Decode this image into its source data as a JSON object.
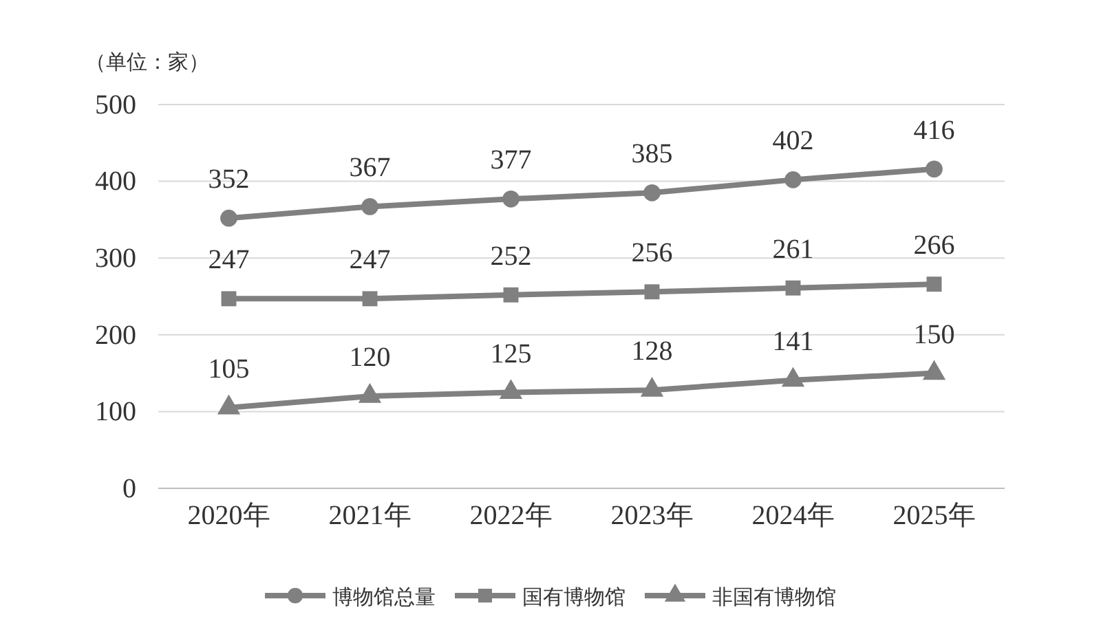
{
  "chart_data": {
    "type": "line",
    "annotations": [
      "（单位：家）"
    ],
    "categories": [
      "2020年",
      "2021年",
      "2022年",
      "2023年",
      "2024年",
      "2025年"
    ],
    "series": [
      {
        "name": "博物馆总量",
        "color": "#808080",
        "marker": "circle",
        "values": [
          352,
          367,
          377,
          385,
          402,
          416
        ]
      },
      {
        "name": "国有博物馆",
        "color": "#808080",
        "marker": "square",
        "values": [
          247,
          247,
          252,
          256,
          261,
          266
        ]
      },
      {
        "name": "非国有博物馆",
        "color": "#808080",
        "marker": "triangle",
        "values": [
          105,
          120,
          125,
          128,
          141,
          150
        ]
      }
    ],
    "ylim": [
      0,
      500
    ],
    "yticks": [
      0,
      100,
      200,
      300,
      400,
      500
    ],
    "grid": "y",
    "data_labels": true,
    "legend": "bottom",
    "line_style": "solid"
  }
}
